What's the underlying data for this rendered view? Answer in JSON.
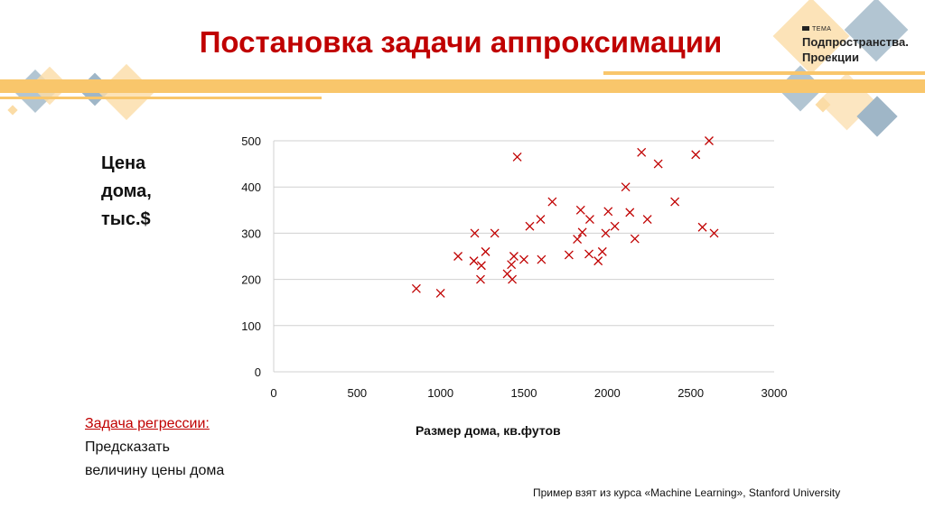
{
  "slide": {
    "title": "Постановка задачи аппроксимации",
    "topic_tag": "ТЕМА",
    "topic_line1": "Подпространства.",
    "topic_line2": "Проекции",
    "task_heading": "Задача регрессии:",
    "task_line1": "Предсказать",
    "task_line2": "величину цены дома",
    "source": "Пример взят из курса «Machine Learning», Stanford University"
  },
  "colors": {
    "accent": "#c00000",
    "stripe": "#f9c66b",
    "diamond_blue": "#9fb6c7",
    "diamond_orange": "#fbdca6"
  },
  "chart_data": {
    "type": "scatter",
    "title": "",
    "ylabel_lines": [
      "Цена",
      "дома,",
      "тыс.$"
    ],
    "xlabel": "Размер дома, кв.футов",
    "xlim": [
      0,
      3000
    ],
    "ylim": [
      0,
      500
    ],
    "xticks": [
      0,
      500,
      1000,
      1500,
      2000,
      2500,
      3000
    ],
    "yticks": [
      0,
      100,
      200,
      300,
      400,
      500
    ],
    "grid": "horizontal",
    "marker": "x",
    "color": "#c00000",
    "points": [
      [
        855,
        180
      ],
      [
        1000,
        170
      ],
      [
        1105,
        250
      ],
      [
        1205,
        300
      ],
      [
        1200,
        240
      ],
      [
        1245,
        230
      ],
      [
        1240,
        200
      ],
      [
        1270,
        260
      ],
      [
        1325,
        300
      ],
      [
        1460,
        465
      ],
      [
        1400,
        212
      ],
      [
        1425,
        232
      ],
      [
        1430,
        200
      ],
      [
        1440,
        250
      ],
      [
        1500,
        243
      ],
      [
        1535,
        315
      ],
      [
        1600,
        330
      ],
      [
        1605,
        243
      ],
      [
        1670,
        368
      ],
      [
        1770,
        253
      ],
      [
        1820,
        287
      ],
      [
        1840,
        350
      ],
      [
        1850,
        302
      ],
      [
        1890,
        255
      ],
      [
        1895,
        330
      ],
      [
        1945,
        240
      ],
      [
        1970,
        260
      ],
      [
        1990,
        300
      ],
      [
        2005,
        347
      ],
      [
        2045,
        315
      ],
      [
        2110,
        400
      ],
      [
        2135,
        345
      ],
      [
        2165,
        288
      ],
      [
        2205,
        475
      ],
      [
        2240,
        330
      ],
      [
        2305,
        450
      ],
      [
        2405,
        368
      ],
      [
        2530,
        470
      ],
      [
        2570,
        313
      ],
      [
        2610,
        500
      ],
      [
        2640,
        300
      ]
    ]
  }
}
